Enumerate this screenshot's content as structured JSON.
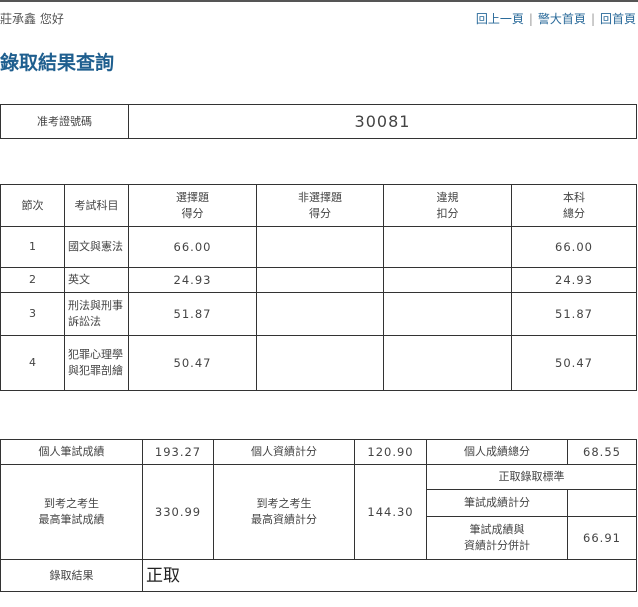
{
  "header": {
    "greeting": "莊承鑫 您好",
    "links": [
      "回上一頁",
      "警大首頁",
      "回首頁"
    ]
  },
  "page_title": "錄取結果查詢",
  "ticket": {
    "label": "准考證號碼",
    "value": "30081"
  },
  "scores": {
    "headers": [
      "節次",
      "考試科目",
      "選擇題\n得分",
      "非選擇題\n得分",
      "違規\n扣分",
      "本科\n總分"
    ],
    "rows": [
      {
        "no": "1",
        "subject": "國文與憲法",
        "mc": "66.00",
        "nonmc": "",
        "penalty": "",
        "total": "66.00"
      },
      {
        "no": "2",
        "subject": "英文",
        "mc": "24.93",
        "nonmc": "",
        "penalty": "",
        "total": "24.93"
      },
      {
        "no": "3",
        "subject": "刑法與刑事訴訟法",
        "mc": "51.87",
        "nonmc": "",
        "penalty": "",
        "total": "51.87"
      },
      {
        "no": "4",
        "subject": "犯罪心理學與犯罪剖繪",
        "mc": "50.47",
        "nonmc": "",
        "penalty": "",
        "total": "50.47"
      }
    ]
  },
  "summary": {
    "written_label": "個人筆試成績",
    "written": "193.27",
    "credit_label": "個人資績計分",
    "credit": "120.90",
    "total_label": "個人成績總分",
    "total": "68.55",
    "max_written_label": "到考之考生\n最高筆試成績",
    "max_written": "330.99",
    "max_credit_label": "到考之考生\n最高資績計分",
    "max_credit": "144.30",
    "standard_label": "正取錄取標準",
    "std_written_label": "筆試成績計分",
    "std_written": "",
    "std_combined_label": "筆試成績與\n資績計分併計",
    "std_combined": "66.91",
    "result_label": "錄取結果",
    "result": "正取"
  }
}
